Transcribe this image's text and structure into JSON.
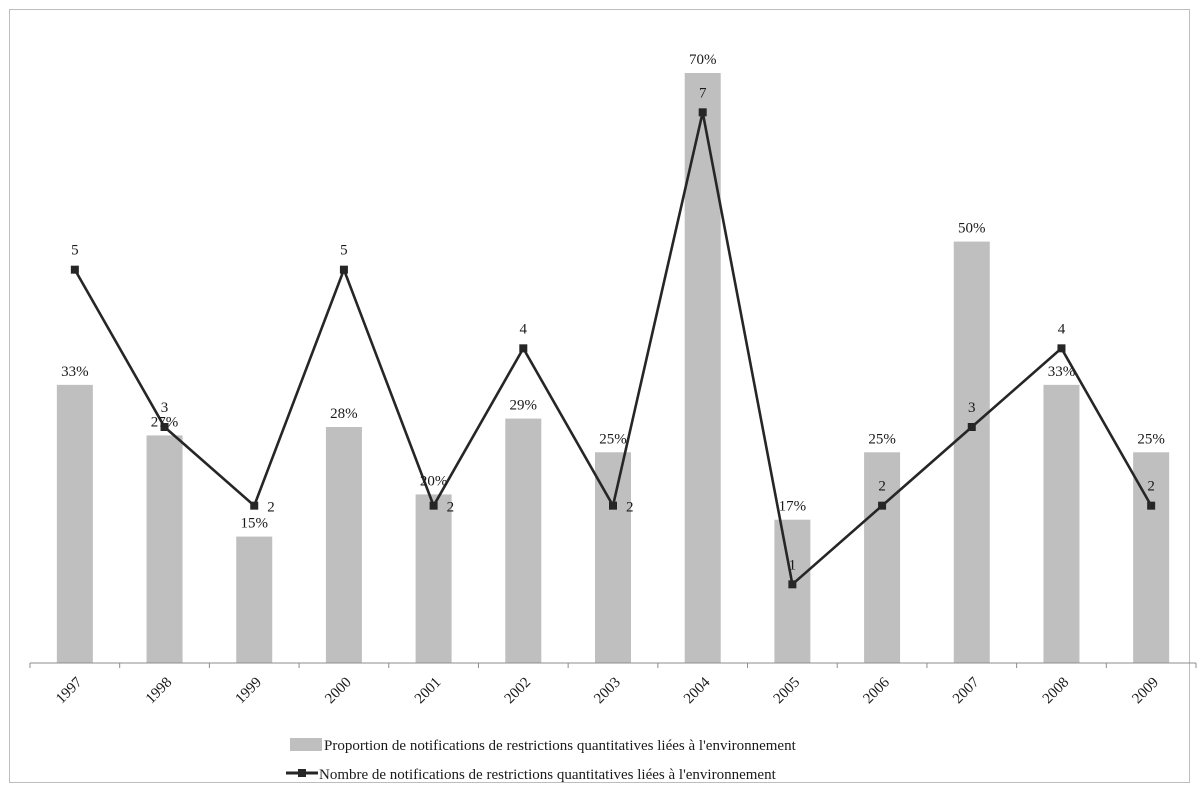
{
  "chart_data": {
    "type": "bar",
    "categories": [
      "1997",
      "1998",
      "1999",
      "2000",
      "2001",
      "2002",
      "2003",
      "2004",
      "2005",
      "2006",
      "2007",
      "2008",
      "2009"
    ],
    "series": [
      {
        "name": "Proportion de notifications de restrictions quantitatives liées à l'environnement",
        "kind": "bar",
        "values": [
          33,
          27,
          15,
          28,
          20,
          29,
          25,
          70,
          17,
          25,
          50,
          33,
          25
        ],
        "labels": [
          "33%",
          "27%",
          "15%",
          "28%",
          "20%",
          "29%",
          "25%",
          "70%",
          "17%",
          "25%",
          "50%",
          "33%",
          "25%"
        ],
        "color": "#bfbfbf"
      },
      {
        "name": "Nombre de notifications de restrictions quantitatives liées à l'environnement",
        "kind": "line",
        "values": [
          5,
          3,
          2,
          5,
          2,
          4,
          2,
          7,
          1,
          2,
          3,
          4,
          2
        ],
        "labels": [
          "5",
          "3",
          "2",
          "5",
          "2",
          "4",
          "2",
          "7",
          "1",
          "2",
          "3",
          "4",
          "2"
        ],
        "color": "#262626"
      }
    ],
    "bar_ylim": [
      0,
      70
    ],
    "line_ylim": [
      0,
      7.5
    ],
    "grid": false,
    "legend_position": "bottom"
  }
}
